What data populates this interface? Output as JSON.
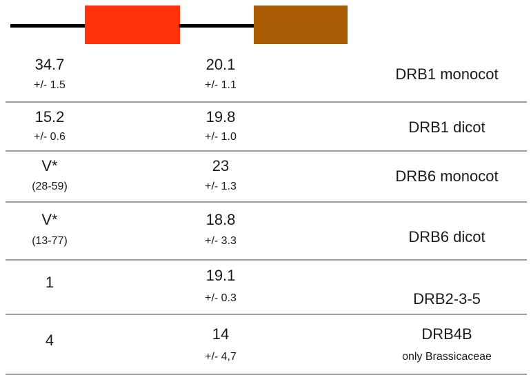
{
  "domain_colors": {
    "first_domain": "#fe3208",
    "second_domain": "#a85b03",
    "backbone": "#000000",
    "separator": "#9c9c9c"
  },
  "rows": [
    {
      "col1": {
        "main": "34.7",
        "sub": "+/- 1.5"
      },
      "col2": {
        "main": "20.1",
        "sub": "+/- 1.1"
      },
      "label": "DRB1 monocot",
      "label_sub": ""
    },
    {
      "col1": {
        "main": "15.2",
        "sub": "+/- 0.6"
      },
      "col2": {
        "main": "19.8",
        "sub": "+/- 1.0"
      },
      "label": "DRB1 dicot",
      "label_sub": ""
    },
    {
      "col1": {
        "main": "V*",
        "sub": "(28-59)"
      },
      "col2": {
        "main": "23",
        "sub": "+/- 1.3"
      },
      "label": "DRB6 monocot",
      "label_sub": ""
    },
    {
      "col1": {
        "main": "V*",
        "sub": "(13-77)"
      },
      "col2": {
        "main": "18.8",
        "sub": "+/- 3.3"
      },
      "label": "DRB6 dicot",
      "label_sub": ""
    },
    {
      "col1": {
        "main": "1",
        "sub": ""
      },
      "col2": {
        "main": "19.1",
        "sub": "+/- 0.3"
      },
      "label": "DRB2-3-5",
      "label_sub": ""
    },
    {
      "col1": {
        "main": "4",
        "sub": ""
      },
      "col2": {
        "main": "14",
        "sub": "+/- 4,7"
      },
      "label": "DRB4B",
      "label_sub": "only Brassicaceae"
    }
  ]
}
